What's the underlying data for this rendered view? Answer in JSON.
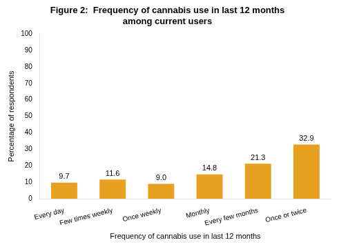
{
  "chart_data": {
    "type": "bar",
    "title": [
      "Figure 2:  Frequency of cannabis use in last 12 months",
      "among current users"
    ],
    "x_label": "Frequency of cannabis use in last 12 months",
    "y_label": "Percentage of respondents",
    "categories": [
      "Every day",
      "Few times weekly",
      "Once weekly",
      "Monthly",
      "Every few months",
      "Once or twice"
    ],
    "values": [
      9.7,
      11.6,
      9.0,
      14.8,
      21.3,
      32.9
    ],
    "value_labels": [
      "9.7",
      "11.6",
      "9.0",
      "14.8",
      "21.3",
      "32.9"
    ],
    "color": "#E8A020",
    "ylim": [
      0,
      100
    ],
    "yticks": [
      0,
      10,
      20,
      30,
      40,
      50,
      60,
      70,
      80,
      90,
      100
    ],
    "grid": false,
    "data_labels": true
  }
}
